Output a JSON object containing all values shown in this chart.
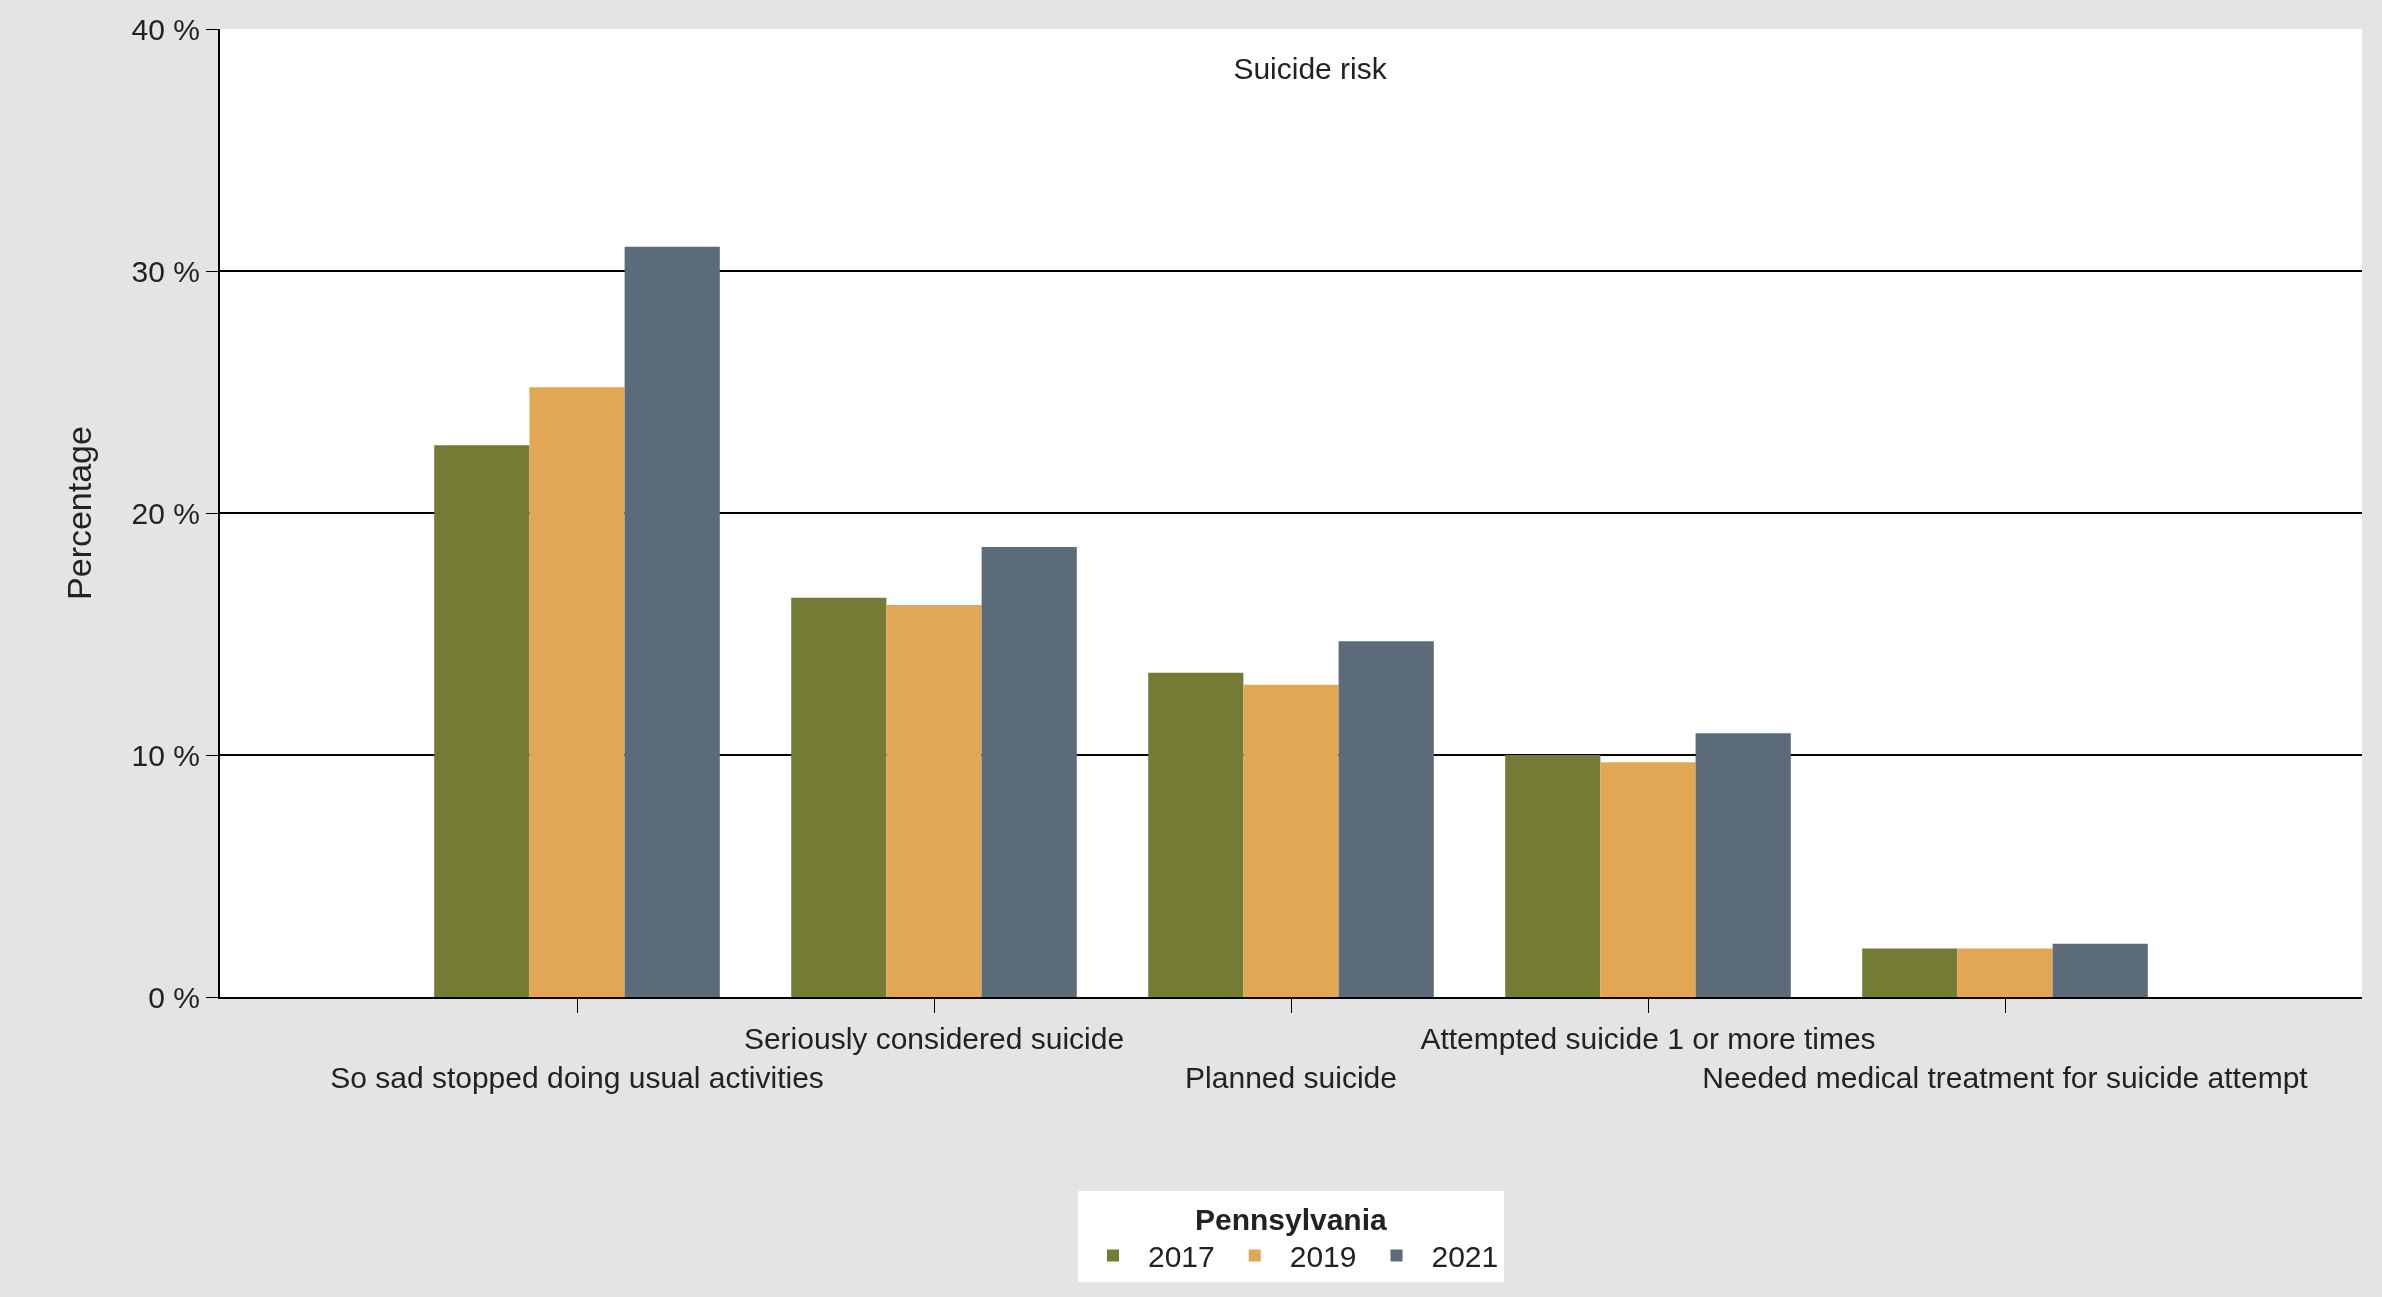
{
  "chart_data": {
    "type": "bar",
    "title": "Suicide risk",
    "ylabel": "Percentage",
    "legend_title": "Pennsylvania",
    "categories": [
      "So sad stopped doing usual activities",
      "Seriously considered suicide",
      "Planned suicide",
      "Attempted suicide 1 or more times",
      "Needed medical treatment for suicide attempt"
    ],
    "series": [
      {
        "name": "2017",
        "color": "#737b35",
        "values": [
          22.8,
          16.5,
          13.4,
          10.0,
          2.0
        ]
      },
      {
        "name": "2019",
        "color": "#e2a755",
        "values": [
          25.2,
          16.2,
          12.9,
          9.7,
          2.0
        ]
      },
      {
        "name": "2021",
        "color": "#5b6b7a",
        "values": [
          31.0,
          18.6,
          14.7,
          10.9,
          2.2
        ]
      }
    ],
    "ylim": [
      0,
      40
    ],
    "yticks": [
      {
        "value": 0,
        "label": "0 %"
      },
      {
        "value": 10,
        "label": "10 %"
      },
      {
        "value": 20,
        "label": "20 %"
      },
      {
        "value": 30,
        "label": "30 %"
      },
      {
        "value": 40,
        "label": "40 %"
      }
    ],
    "grid": "y",
    "legend": "bottom"
  }
}
